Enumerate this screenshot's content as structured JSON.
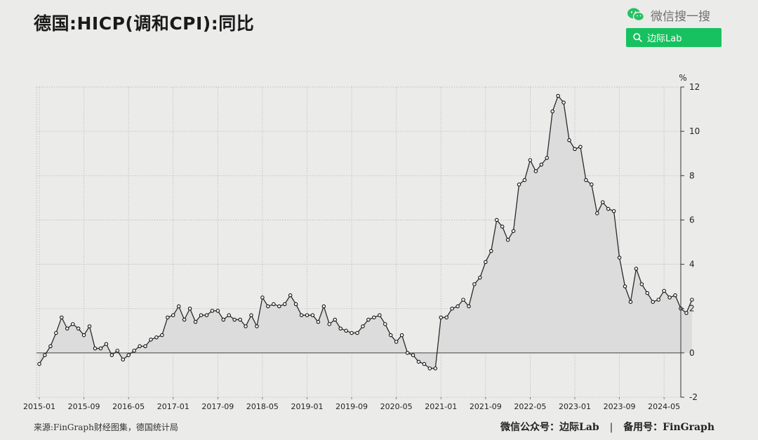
{
  "title": "德国:HICP(调和CPI):同比",
  "wechat": {
    "label": "微信搜一搜",
    "search_text": "边际Lab",
    "accent": "#17c15f"
  },
  "footer": {
    "source": "来源:FinGraph财经图集，德国统计局",
    "public_account": "微信公众号：边际Lab",
    "separator": "|",
    "backup": "备用号：FinGraph"
  },
  "chart_data": {
    "type": "line",
    "unit": "%",
    "fill": "area",
    "ylim": [
      -2,
      12
    ],
    "yticks": [
      -2,
      0,
      2,
      4,
      6,
      8,
      10,
      12
    ],
    "xtick_labels": [
      "2015-01",
      "2015-09",
      "2016-05",
      "2017-01",
      "2017-09",
      "2018-05",
      "2019-01",
      "2019-09",
      "2020-05",
      "2021-01",
      "2021-09",
      "2022-05",
      "2023-01",
      "2023-09",
      "2024-05"
    ],
    "start": "2015-01",
    "end": "2024-08",
    "grid": true,
    "axis_position": "right",
    "series": [
      {
        "values": [
          -0.5,
          -0.1,
          0.3,
          0.9,
          1.6,
          1.1,
          1.3,
          1.1,
          0.8,
          1.2,
          0.2,
          0.2,
          0.4,
          -0.1,
          0.1,
          -0.3,
          -0.1,
          0.1,
          0.3,
          0.3,
          0.6,
          0.7,
          0.8,
          1.6,
          1.7,
          2.1,
          1.5,
          2.0,
          1.4,
          1.7,
          1.7,
          1.9,
          1.9,
          1.5,
          1.7,
          1.5,
          1.5,
          1.2,
          1.7,
          1.2,
          2.5,
          2.1,
          2.2,
          2.1,
          2.2,
          2.6,
          2.2,
          1.7,
          1.7,
          1.7,
          1.4,
          2.1,
          1.3,
          1.5,
          1.1,
          1.0,
          0.9,
          0.9,
          1.2,
          1.5,
          1.6,
          1.7,
          1.3,
          0.8,
          0.5,
          0.8,
          0.0,
          -0.1,
          -0.4,
          -0.5,
          -0.7,
          -0.7,
          1.6,
          1.6,
          2.0,
          2.1,
          2.4,
          2.1,
          3.1,
          3.4,
          4.1,
          4.6,
          6.0,
          5.7,
          5.1,
          5.5,
          7.6,
          7.8,
          8.7,
          8.2,
          8.5,
          8.8,
          10.9,
          11.6,
          11.3,
          9.6,
          9.2,
          9.3,
          7.8,
          7.6,
          6.3,
          6.8,
          6.5,
          6.4,
          4.3,
          3.0,
          2.3,
          3.8,
          3.1,
          2.7,
          2.3,
          2.4,
          2.8,
          2.5,
          2.6,
          2.0,
          1.8,
          2.4
        ]
      }
    ]
  }
}
